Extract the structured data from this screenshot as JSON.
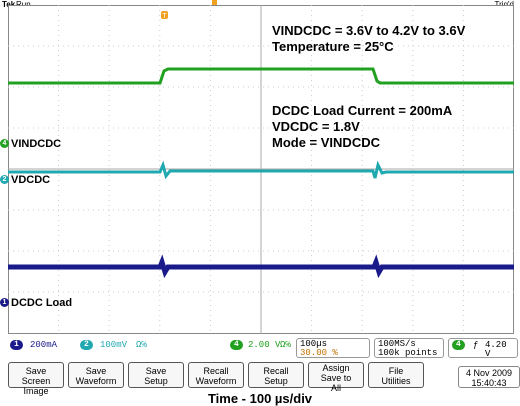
{
  "header": {
    "brand": "Tek",
    "state": "Run",
    "trigger_status": "Trig'd"
  },
  "annotations": {
    "vin_range": "VINDCDC = 3.6V to 4.2V to 3.6V",
    "temperature": "Temperature = 25°C",
    "load_current": "DCDC Load Current = 200mA",
    "vdcdc": "VDCDC = 1.8V",
    "mode": "Mode = VINDCDC"
  },
  "channels": [
    {
      "id": "4",
      "label": "VINDCDC",
      "color": "#22a020"
    },
    {
      "id": "2",
      "label": "VDCDC",
      "color": "#20a8b0"
    },
    {
      "id": "1",
      "label": "DCDC Load",
      "color": "#1a1a8a"
    }
  ],
  "status_bar": {
    "ch1_scale": "200mA",
    "ch2_scale": "100mV",
    "ch2_coupling": "Ω℅",
    "ch4_scale": "2.00 V",
    "ch4_coupling": "Ω℅",
    "timebase": "100µs",
    "trigger_offset": "30.00 %",
    "sample_rate": "100MS/s",
    "record_length": "100k points",
    "trigger_source": "4",
    "trigger_slope": "ƒ",
    "trigger_level": "4.20 V"
  },
  "buttons": [
    {
      "line1": "Save",
      "line2": "Screen Image"
    },
    {
      "line1": "Save",
      "line2": "Waveform"
    },
    {
      "line1": "Save",
      "line2": "Setup"
    },
    {
      "line1": "Recall",
      "line2": "Waveform"
    },
    {
      "line1": "Recall",
      "line2": "Setup"
    },
    {
      "line1": "Assign",
      "line2": "Save to",
      "line3": "All"
    },
    {
      "line1": "File",
      "line2": "Utilities"
    }
  ],
  "datetime": {
    "date": "4 Nov 2009",
    "time": "15:40:43"
  },
  "caption": "Time - 100 µs/div",
  "colors": {
    "ch1": "#1a1a8a",
    "ch2": "#20a8b0",
    "ch4": "#22a020",
    "trigger": "#f0a020"
  }
}
